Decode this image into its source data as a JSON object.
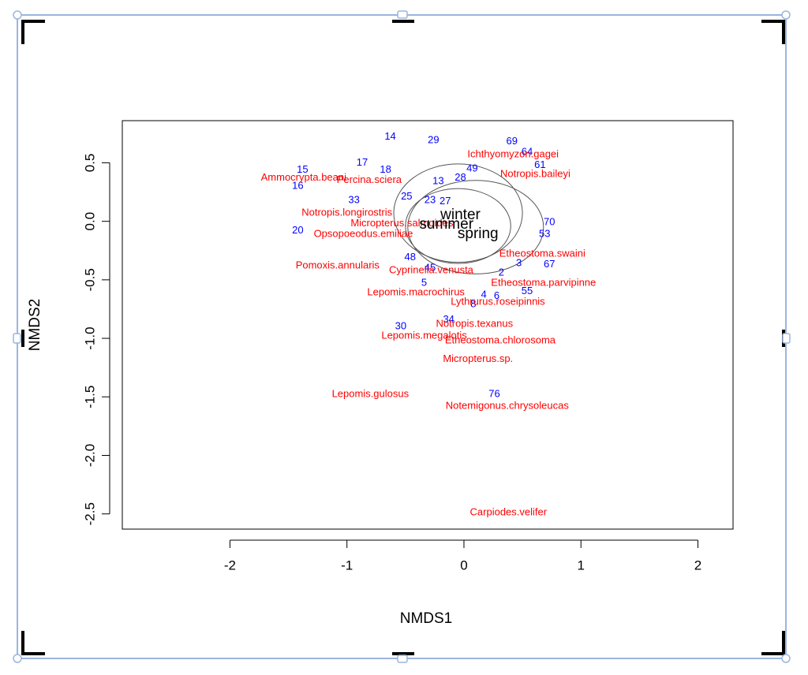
{
  "chart_data": {
    "type": "scatter",
    "xlabel": "NMDS1",
    "ylabel": "NMDS2",
    "xlim": [
      -2.92,
      2.3
    ],
    "ylim": [
      -2.63,
      0.86
    ],
    "xticks": [
      -2,
      -1,
      0,
      1,
      2
    ],
    "yticks": [
      0.5,
      {
        "value": 0,
        "label": "0.0"
      },
      -0.5,
      {
        "value": -1,
        "label": "-1.0"
      },
      -1.5,
      {
        "value": -2,
        "label": "-2.0"
      },
      -2.5
    ],
    "series": [
      {
        "color": "#0000ff",
        "labels": [
          "14",
          "29",
          "69",
          "17",
          "18",
          "15",
          "16",
          "13",
          "28",
          "49",
          "33",
          "25",
          "23",
          "27",
          "20",
          "53",
          "70",
          "48",
          "3",
          "67",
          "45",
          "2",
          "5",
          "4",
          "6",
          "55",
          "8",
          "30",
          "34",
          "76",
          "64",
          "61"
        ],
        "x": [
          -0.63,
          -0.26,
          0.41,
          -0.87,
          -0.67,
          -1.38,
          -1.42,
          -0.22,
          -0.03,
          0.07,
          -0.94,
          -0.49,
          -0.29,
          -0.16,
          -1.42,
          0.69,
          0.73,
          -0.46,
          0.47,
          0.73,
          -0.29,
          0.32,
          -0.34,
          0.17,
          0.28,
          0.54,
          0.08,
          -0.54,
          -0.13,
          0.26,
          0.54,
          0.65
        ],
        "y": [
          0.72,
          0.69,
          0.68,
          0.5,
          0.44,
          0.44,
          0.3,
          0.34,
          0.37,
          0.45,
          0.18,
          0.21,
          0.18,
          0.17,
          -0.08,
          -0.11,
          -0.01,
          -0.31,
          -0.36,
          -0.37,
          -0.4,
          -0.44,
          -0.53,
          -0.63,
          -0.64,
          -0.6,
          -0.71,
          -0.9,
          -0.84,
          -1.48,
          0.59,
          0.48
        ]
      },
      {
        "color": "#ff0000",
        "labels": [
          "Ammocrypta.beani",
          "Percina.sciera",
          "Ichthyomyzon.gagei",
          "Notropis.baileyi",
          "Notropis.longirostris",
          "Pomoxis.annularis",
          "Cyprinella.venusta",
          "Lepomis.macrochirus",
          "Lythrurus.roseipinnis",
          "Notropis.texanus",
          "Lepomis.megalotis",
          "Etheostoma.chlorosoma",
          "Micropterus.sp.",
          "Lepomis.gulosus",
          "Notemigonus.chrysoleucas",
          "Carpiodes.velifer",
          "Etheostoma.swaini",
          "Opsopoeodus.emiliae",
          "Etheostoma.parvipinne",
          "Micropterus.salmoides"
        ],
        "x": [
          -1.37,
          -0.81,
          0.42,
          0.61,
          -1.0,
          -1.08,
          -0.28,
          -0.41,
          0.29,
          0.09,
          -0.34,
          0.31,
          0.12,
          -0.8,
          0.37,
          0.38,
          0.67,
          -0.86,
          0.68,
          -0.53
        ],
        "y": [
          0.37,
          0.35,
          0.57,
          0.4,
          0.07,
          -0.38,
          -0.42,
          -0.61,
          -0.69,
          -0.88,
          -0.98,
          -1.02,
          -1.18,
          -1.48,
          -1.58,
          -2.49,
          -0.28,
          -0.11,
          -0.53,
          -0.02
        ]
      }
    ],
    "centroids": {
      "color": "#000000",
      "labels": [
        "winter",
        "summer",
        "spring"
      ],
      "x": [
        -0.03,
        -0.15,
        0.12
      ],
      "y": [
        0.05,
        -0.03,
        -0.11
      ]
    },
    "ellipses": {
      "color": "#555555",
      "x": [
        -0.05,
        0.1,
        -0.05
      ],
      "y": [
        0.07,
        -0.05,
        -0.04
      ],
      "rx": [
        0.55,
        0.58,
        0.45
      ],
      "ry": [
        0.42,
        0.4,
        0.32
      ]
    }
  }
}
